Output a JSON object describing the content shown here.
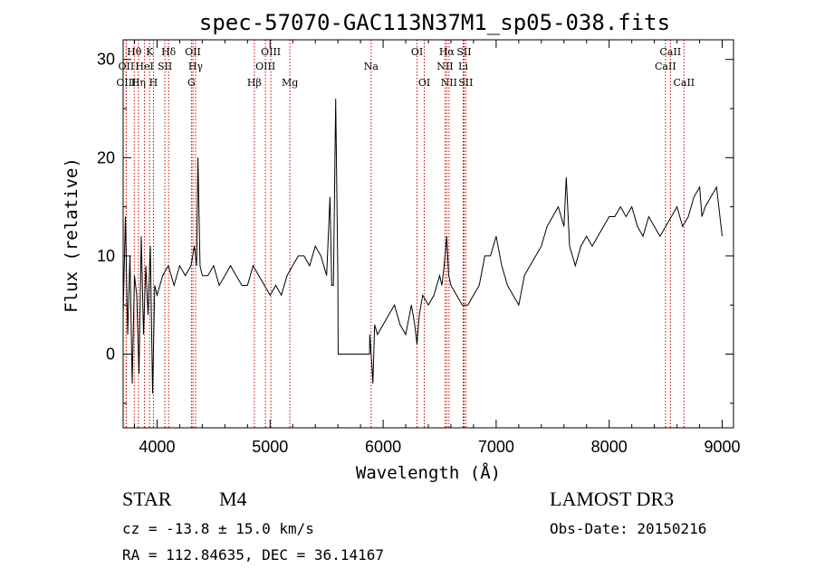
{
  "chart_data": {
    "type": "line",
    "title": "spec-57070-GAC113N37M1_sp05-038.fits",
    "xlabel": "Wavelength (Å)",
    "ylabel": "Flux (relative)",
    "xlim": [
      3700,
      9100
    ],
    "ylim": [
      -7.5,
      32
    ],
    "x_ticks": [
      4000,
      5000,
      6000,
      7000,
      8000,
      9000
    ],
    "y_ticks": [
      0,
      10,
      20,
      30
    ],
    "series": [
      {
        "name": "flux",
        "x": [
          3700,
          3720,
          3740,
          3760,
          3780,
          3800,
          3820,
          3840,
          3860,
          3880,
          3900,
          3920,
          3940,
          3960,
          3980,
          4000,
          4050,
          4100,
          4150,
          4200,
          4250,
          4300,
          4330,
          4350,
          4362,
          4380,
          4400,
          4450,
          4500,
          4550,
          4600,
          4650,
          4700,
          4750,
          4800,
          4850,
          4900,
          4950,
          5000,
          5050,
          5100,
          5150,
          5200,
          5250,
          5300,
          5350,
          5400,
          5450,
          5500,
          5530,
          5545,
          5560,
          5580,
          5600,
          5602,
          5700,
          5800,
          5880,
          5882,
          5900,
          5910,
          5925,
          5950,
          6000,
          6050,
          6100,
          6150,
          6200,
          6250,
          6280,
          6300,
          6320,
          6350,
          6400,
          6450,
          6500,
          6520,
          6540,
          6563,
          6580,
          6600,
          6650,
          6700,
          6750,
          6800,
          6850,
          6900,
          6950,
          7000,
          7050,
          7100,
          7150,
          7200,
          7250,
          7300,
          7350,
          7400,
          7450,
          7500,
          7550,
          7600,
          7620,
          7650,
          7700,
          7750,
          7800,
          7850,
          7900,
          7950,
          8000,
          8050,
          8100,
          8150,
          8200,
          8250,
          8300,
          8350,
          8400,
          8450,
          8500,
          8550,
          8600,
          8650,
          8700,
          8750,
          8800,
          8820,
          8850,
          8900,
          8950,
          8980,
          9000
        ],
        "values": [
          4,
          14,
          2,
          10,
          -3,
          8,
          6,
          -2,
          12,
          2,
          9,
          4,
          11,
          -4,
          7,
          6,
          8,
          9,
          7,
          9,
          8,
          9,
          11,
          9,
          20,
          9,
          8,
          8,
          9,
          7,
          8,
          9,
          8,
          7,
          7,
          9,
          8,
          7,
          6,
          7,
          6,
          8,
          9,
          10,
          10,
          9,
          11,
          10,
          8,
          16,
          7,
          7,
          26,
          8,
          0,
          0,
          0,
          0,
          2,
          -1,
          -3,
          3,
          2,
          3,
          4,
          5,
          3,
          2,
          5,
          3,
          1,
          4,
          6,
          5,
          6,
          8,
          7,
          9,
          12,
          8,
          7,
          6,
          5,
          5,
          6,
          7,
          10,
          10,
          12,
          9,
          7,
          6,
          5,
          8,
          9,
          10,
          11,
          13,
          14,
          15,
          13,
          18,
          11,
          9,
          11,
          12,
          11,
          12,
          13,
          14,
          14,
          15,
          14,
          15,
          13,
          12,
          14,
          13,
          12,
          13,
          14,
          15,
          13,
          14,
          16,
          17,
          14,
          15,
          16,
          17,
          14,
          12
        ]
      }
    ],
    "line_markers": [
      {
        "label": "OII",
        "x": 3727,
        "row": 1
      },
      {
        "label": "OIII",
        "x": 3727,
        "row": 2
      },
      {
        "label": "Hθ",
        "x": 3798,
        "row": 0
      },
      {
        "label": "Hη",
        "x": 3835,
        "row": 2
      },
      {
        "label": "HeI",
        "x": 3889,
        "row": 1
      },
      {
        "label": "K",
        "x": 3934,
        "row": 0
      },
      {
        "label": "H",
        "x": 3968,
        "row": 2
      },
      {
        "label": "SII",
        "x": 4069,
        "row": 1
      },
      {
        "label": "Hδ",
        "x": 4102,
        "row": 0
      },
      {
        "label": "OII",
        "x": 4317,
        "row": 0
      },
      {
        "label": "G",
        "x": 4304,
        "row": 2
      },
      {
        "label": "Hγ",
        "x": 4341,
        "row": 1
      },
      {
        "label": "Hβ",
        "x": 4861,
        "row": 2
      },
      {
        "label": "OIII",
        "x": 4959,
        "row": 1
      },
      {
        "label": "OIII",
        "x": 5007,
        "row": 0
      },
      {
        "label": "Mg",
        "x": 5175,
        "row": 2
      },
      {
        "label": "Na",
        "x": 5894,
        "row": 1
      },
      {
        "label": "OI",
        "x": 6300,
        "row": 0
      },
      {
        "label": "OI",
        "x": 6364,
        "row": 2
      },
      {
        "label": "NII",
        "x": 6548,
        "row": 1
      },
      {
        "label": "Hα",
        "x": 6563,
        "row": 0
      },
      {
        "label": "NII",
        "x": 6583,
        "row": 2
      },
      {
        "label": "Li",
        "x": 6708,
        "row": 1
      },
      {
        "label": "SII",
        "x": 6716,
        "row": 0
      },
      {
        "label": "SII",
        "x": 6731,
        "row": 2
      },
      {
        "label": "CaII",
        "x": 8498,
        "row": 1
      },
      {
        "label": "CaII",
        "x": 8542,
        "row": 0
      },
      {
        "label": "CaII",
        "x": 8662,
        "row": 2
      }
    ]
  },
  "info": {
    "object_class": "STAR",
    "subclass": "M4",
    "survey": "LAMOST DR3",
    "redshift_line": "cz = -13.8 ± 15.0 km/s",
    "obs_date_line": "Obs-Date: 20150216",
    "coords_line": "RA = 112.84635, DEC =  36.14167"
  },
  "colors": {
    "spectrum": "#000000",
    "marker_line": "#cc0000",
    "axis": "#000000"
  }
}
